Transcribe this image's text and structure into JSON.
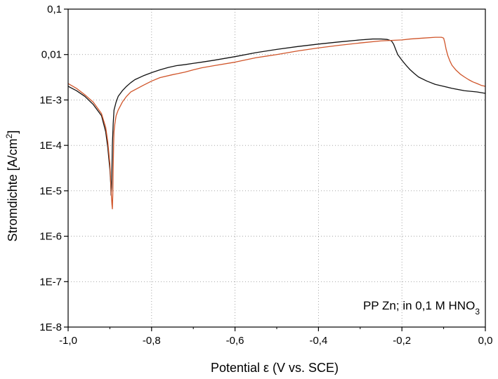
{
  "chart_data": {
    "type": "line",
    "xlabel_main": "Potential ε (V vs. SCE)",
    "ylabel_main": "Stromdichte  [A/cm",
    "ylabel_sup": "2",
    "ylabel_close": "]",
    "xlim": [
      -1.0,
      0.0
    ],
    "ylim": [
      1e-08,
      0.1
    ],
    "y_scale": "log",
    "grid": true,
    "x_ticks": [
      {
        "value": -1.0,
        "label": "-1,0"
      },
      {
        "value": -0.8,
        "label": "-0,8"
      },
      {
        "value": -0.6,
        "label": "-0,6"
      },
      {
        "value": -0.4,
        "label": "-0,4"
      },
      {
        "value": -0.2,
        "label": "-0,2"
      },
      {
        "value": 0.0,
        "label": "0,0"
      }
    ],
    "y_ticks": [
      {
        "value": 0.1,
        "label": "0,1"
      },
      {
        "value": 0.01,
        "label": "0,01"
      },
      {
        "value": 0.001,
        "label": "1E-3"
      },
      {
        "value": 0.0001,
        "label": "1E-4"
      },
      {
        "value": 1e-05,
        "label": "1E-5"
      },
      {
        "value": 1e-06,
        "label": "1E-6"
      },
      {
        "value": 1e-07,
        "label": "1E-7"
      },
      {
        "value": 1e-08,
        "label": "1E-8"
      }
    ],
    "annotation": {
      "text_main": "PP Zn; in 0,1 M HNO",
      "text_sub": "3",
      "position": "bottom-right"
    },
    "series": [
      {
        "color": "#111111",
        "x": [
          -1.0,
          -0.98,
          -0.96,
          -0.94,
          -0.92,
          -0.91,
          -0.905,
          -0.9,
          -0.898,
          -0.897,
          -0.896,
          -0.895,
          -0.894,
          -0.892,
          -0.89,
          -0.885,
          -0.88,
          -0.87,
          -0.86,
          -0.85,
          -0.84,
          -0.82,
          -0.8,
          -0.78,
          -0.76,
          -0.74,
          -0.72,
          -0.7,
          -0.68,
          -0.65,
          -0.6,
          -0.55,
          -0.5,
          -0.45,
          -0.4,
          -0.35,
          -0.3,
          -0.27,
          -0.25,
          -0.235,
          -0.225,
          -0.22,
          -0.215,
          -0.21,
          -0.2,
          -0.19,
          -0.18,
          -0.17,
          -0.16,
          -0.14,
          -0.12,
          -0.1,
          -0.08,
          -0.05,
          -0.02,
          0.0
        ],
        "y": [
          0.002,
          0.0016,
          0.0012,
          0.0008,
          0.00045,
          0.0002,
          9e-05,
          3e-05,
          1.5e-05,
          8e-06,
          1.2e-05,
          3e-05,
          0.0001,
          0.0003,
          0.0006,
          0.0009,
          0.0012,
          0.0016,
          0.002,
          0.0024,
          0.0028,
          0.0034,
          0.004,
          0.0046,
          0.0052,
          0.0057,
          0.006,
          0.0064,
          0.0068,
          0.0075,
          0.009,
          0.011,
          0.013,
          0.015,
          0.017,
          0.019,
          0.021,
          0.022,
          0.022,
          0.0215,
          0.02,
          0.017,
          0.013,
          0.01,
          0.0075,
          0.0058,
          0.0046,
          0.0038,
          0.0032,
          0.0026,
          0.0022,
          0.002,
          0.0018,
          0.0016,
          0.0015,
          0.0014
        ]
      },
      {
        "color": "#d0552a",
        "x": [
          -1.0,
          -0.98,
          -0.96,
          -0.94,
          -0.92,
          -0.91,
          -0.905,
          -0.9,
          -0.897,
          -0.895,
          -0.894,
          -0.893,
          -0.892,
          -0.891,
          -0.89,
          -0.888,
          -0.885,
          -0.88,
          -0.87,
          -0.86,
          -0.85,
          -0.82,
          -0.8,
          -0.78,
          -0.75,
          -0.72,
          -0.7,
          -0.68,
          -0.65,
          -0.6,
          -0.55,
          -0.5,
          -0.45,
          -0.4,
          -0.35,
          -0.3,
          -0.25,
          -0.2,
          -0.18,
          -0.15,
          -0.12,
          -0.105,
          -0.1,
          -0.097,
          -0.094,
          -0.09,
          -0.085,
          -0.08,
          -0.07,
          -0.06,
          -0.05,
          -0.04,
          -0.03,
          -0.02,
          -0.01,
          0.0
        ],
        "y": [
          0.0023,
          0.0018,
          0.0013,
          0.0009,
          0.0005,
          0.00025,
          0.00012,
          4e-05,
          1e-05,
          5e-06,
          4e-06,
          8e-06,
          3e-05,
          0.0001,
          0.0002,
          0.0003,
          0.00045,
          0.0006,
          0.0009,
          0.0012,
          0.0015,
          0.0021,
          0.0026,
          0.0031,
          0.0036,
          0.0041,
          0.0046,
          0.0051,
          0.0057,
          0.0068,
          0.0085,
          0.01,
          0.012,
          0.014,
          0.016,
          0.018,
          0.02,
          0.021,
          0.022,
          0.023,
          0.024,
          0.024,
          0.023,
          0.018,
          0.013,
          0.0095,
          0.0072,
          0.0058,
          0.0045,
          0.0037,
          0.0032,
          0.0028,
          0.0025,
          0.0023,
          0.0021,
          0.002
        ]
      }
    ]
  }
}
